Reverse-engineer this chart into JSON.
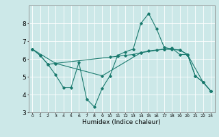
{
  "title": "",
  "xlabel": "Humidex (Indice chaleur)",
  "ylabel": "",
  "background_color": "#cce8e8",
  "grid_color": "#ffffff",
  "line_color": "#1a7a6e",
  "xlim": [
    -0.5,
    23.5
  ],
  "ylim": [
    3,
    9
  ],
  "yticks": [
    3,
    4,
    5,
    6,
    7,
    8
  ],
  "xticks": [
    0,
    1,
    2,
    3,
    4,
    5,
    6,
    7,
    8,
    9,
    10,
    11,
    12,
    13,
    14,
    15,
    16,
    17,
    18,
    19,
    20,
    21,
    22,
    23
  ],
  "series": [
    {
      "x": [
        0,
        1,
        2,
        3,
        4,
        5,
        6,
        7,
        8,
        9,
        10,
        11,
        12,
        13,
        14,
        15,
        16,
        17,
        18,
        19,
        20,
        21,
        22,
        23
      ],
      "y": [
        6.55,
        6.2,
        5.7,
        5.1,
        4.4,
        4.4,
        5.8,
        3.75,
        3.3,
        4.35,
        5.05,
        6.2,
        6.4,
        6.55,
        8.0,
        8.55,
        7.7,
        6.65,
        6.55,
        6.5,
        6.25,
        5.05,
        4.7,
        4.2
      ]
    },
    {
      "x": [
        0,
        1,
        2,
        3,
        10,
        11,
        12,
        13,
        14,
        15,
        16,
        17,
        18,
        19,
        20,
        21,
        22,
        23
      ],
      "y": [
        6.55,
        6.2,
        5.7,
        5.75,
        6.1,
        6.15,
        6.2,
        6.25,
        6.35,
        6.45,
        6.5,
        6.55,
        6.6,
        6.25,
        6.25,
        5.05,
        4.7,
        4.2
      ]
    },
    {
      "x": [
        0,
        3,
        9,
        14,
        17,
        19,
        20,
        22,
        23
      ],
      "y": [
        6.55,
        5.75,
        5.05,
        6.35,
        6.55,
        6.5,
        6.25,
        4.7,
        4.2
      ]
    }
  ]
}
